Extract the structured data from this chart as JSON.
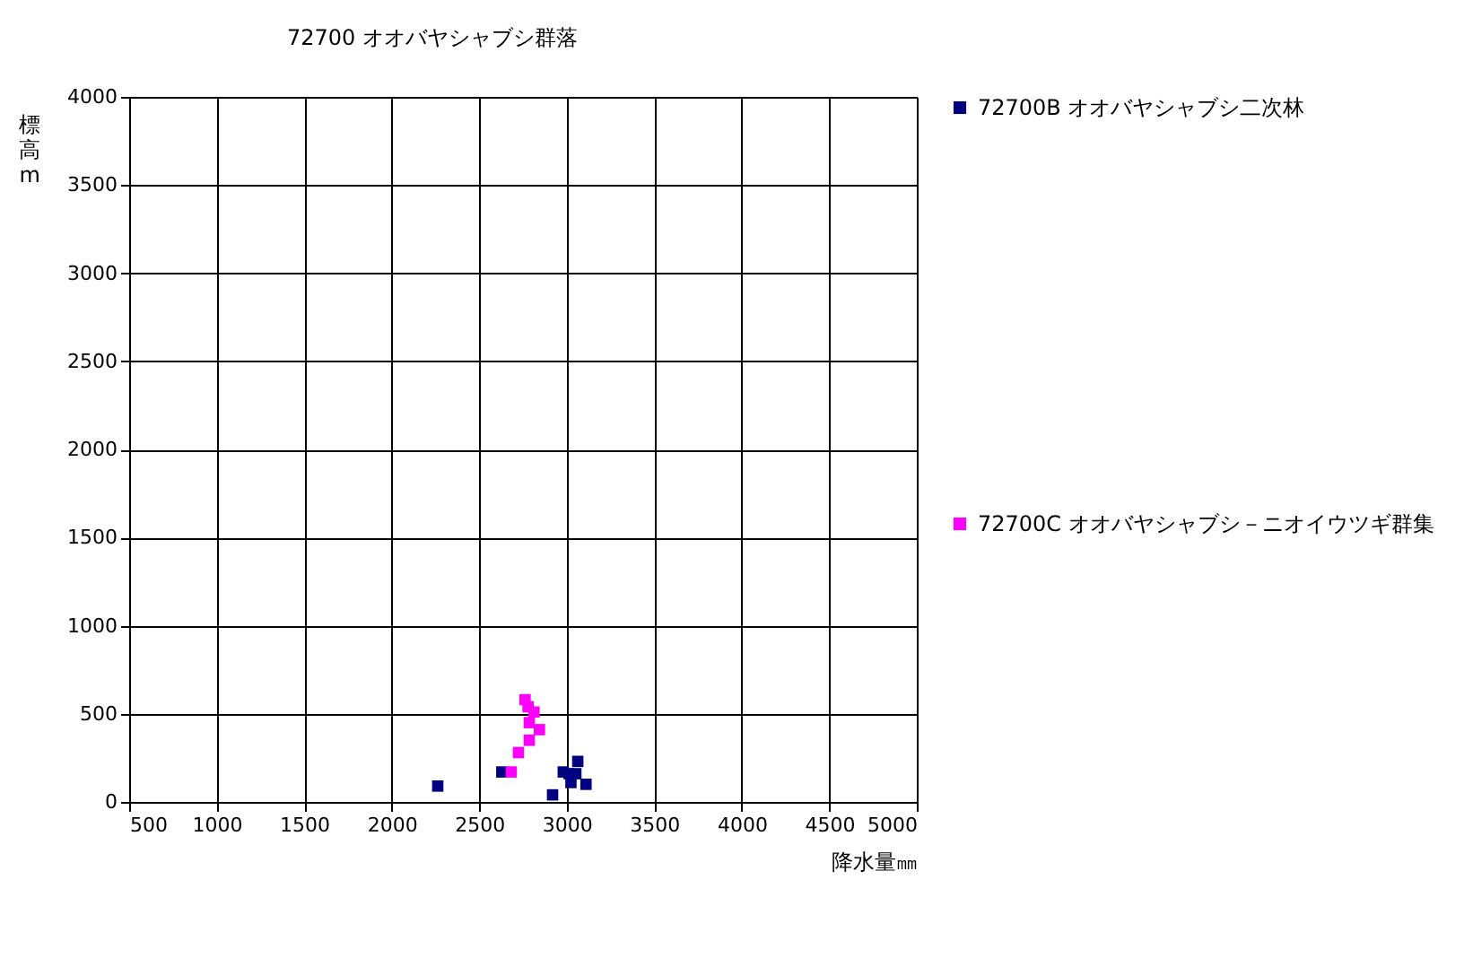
{
  "chart_data": {
    "type": "scatter",
    "title": "72700 オオバヤシャブシ群落",
    "xlabel": "降水量㎜",
    "ylabel": "標高m",
    "xlim": [
      500,
      5000
    ],
    "xticks": [
      500,
      1000,
      1500,
      2000,
      2500,
      3000,
      3500,
      4000,
      4500,
      5000
    ],
    "ylim": [
      0,
      4000
    ],
    "yticks": [
      0,
      500,
      1000,
      1500,
      2000,
      2500,
      3000,
      3500,
      4000
    ],
    "grid": true,
    "legend": "right",
    "marker": "square",
    "series": [
      {
        "name": "72700B オオバヤシャブシ二次林",
        "color": "#000080",
        "x": [
          2263,
          2629,
          2919,
          3063,
          2980,
          3014,
          3052,
          3024,
          3110
        ],
        "values": [
          90,
          170,
          40,
          230,
          170,
          160,
          160,
          110,
          100
        ]
      },
      {
        "name": "72700C オオバヤシャブシ－ニオイウツギ群集",
        "color": "#ff00ff",
        "x": [
          2762,
          2779,
          2813,
          2786,
          2844,
          2786,
          2724,
          2683
        ],
        "values": [
          580,
          540,
          510,
          450,
          410,
          350,
          280,
          170
        ]
      }
    ]
  }
}
